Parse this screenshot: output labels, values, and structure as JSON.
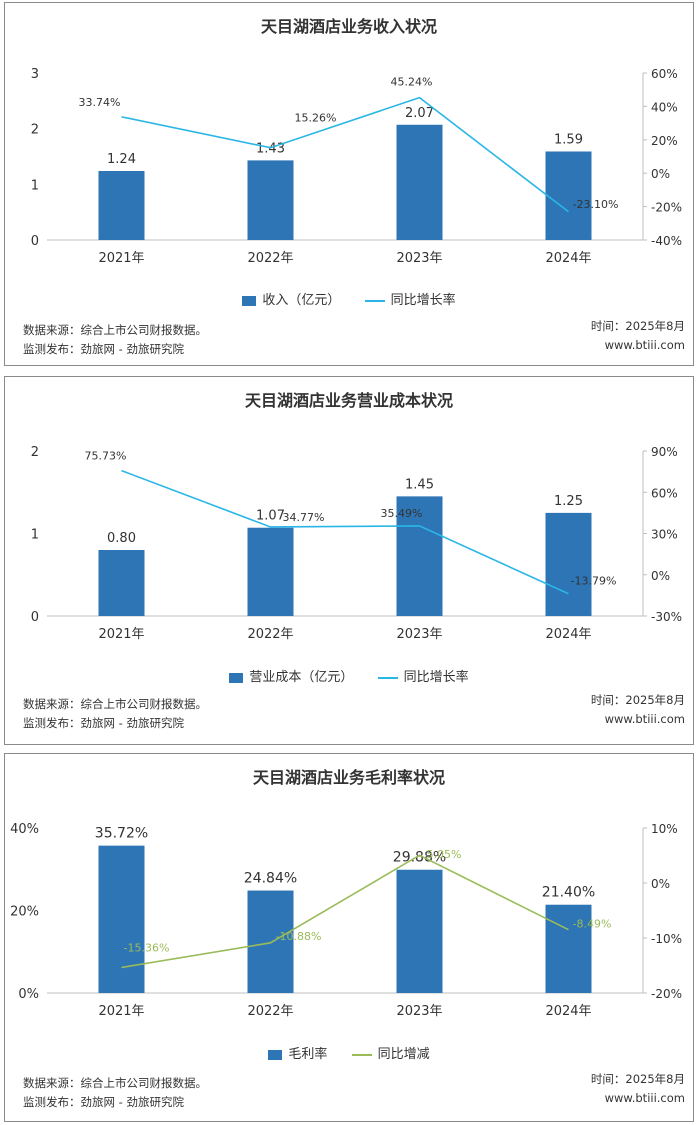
{
  "panels": [
    {
      "title": "天目湖酒店业务收入状况",
      "bar_legend": "收入（亿元）",
      "line_legend": "同比增长率",
      "source": "数据来源：综合上市公司财报数据。",
      "publisher": "监测发布：劲旅网 - 劲旅研究院",
      "time": "时间：2025年8月",
      "site": "www.btiii.com"
    },
    {
      "title": "天目湖酒店业务营业成本状况",
      "bar_legend": "营业成本（亿元）",
      "line_legend": "同比增长率",
      "source": "数据来源：综合上市公司财报数据。",
      "publisher": "监测发布：劲旅网 - 劲旅研究院",
      "time": "时间：2025年8月",
      "site": "www.btiii.com"
    },
    {
      "title": "天目湖酒店业务毛利率状况",
      "bar_legend": "毛利率",
      "line_legend": "同比增减",
      "source": "数据来源：综合上市公司财报数据。",
      "publisher": "监测发布：劲旅网 - 劲旅研究院",
      "time": "时间：2025年8月",
      "site": "www.btiii.com"
    }
  ],
  "chart_data": [
    {
      "type": "bar",
      "title": "天目湖酒店业务收入状况",
      "categories": [
        "2021年",
        "2022年",
        "2023年",
        "2024年"
      ],
      "series": [
        {
          "name": "收入（亿元）",
          "type": "bar",
          "axis": "left",
          "values": [
            1.24,
            1.43,
            2.07,
            1.59
          ],
          "labels": [
            "1.24",
            "1.43",
            "2.07",
            "1.59"
          ],
          "color": "#2E75B6"
        },
        {
          "name": "同比增长率",
          "type": "line",
          "axis": "right",
          "values": [
            33.74,
            15.26,
            45.24,
            -23.1
          ],
          "labels": [
            "33.74%",
            "15.26%",
            "45.24%",
            "-23.10%"
          ],
          "color": "#29B6E6"
        }
      ],
      "yleft": {
        "min": 0,
        "max": 3,
        "ticks": [
          "0",
          "1",
          "2",
          "3"
        ],
        "tick_values": [
          0,
          1,
          2,
          3
        ]
      },
      "yright": {
        "min": -40,
        "max": 60,
        "ticks": [
          "-40%",
          "-20%",
          "0%",
          "20%",
          "40%",
          "60%"
        ],
        "tick_values": [
          -40,
          -20,
          0,
          20,
          40,
          60
        ]
      },
      "legend": "bottom"
    },
    {
      "type": "bar",
      "title": "天目湖酒店业务营业成本状况",
      "categories": [
        "2021年",
        "2022年",
        "2023年",
        "2024年"
      ],
      "series": [
        {
          "name": "营业成本（亿元）",
          "type": "bar",
          "axis": "left",
          "values": [
            0.8,
            1.07,
            1.45,
            1.25
          ],
          "labels": [
            "0.80",
            "1.07",
            "1.45",
            "1.25"
          ],
          "color": "#2E75B6"
        },
        {
          "name": "同比增长率",
          "type": "line",
          "axis": "right",
          "values": [
            75.73,
            34.77,
            35.49,
            -13.79
          ],
          "labels": [
            "75.73%",
            "34.77%",
            "35.49%",
            "-13.79%"
          ],
          "color": "#29B6E6"
        }
      ],
      "yleft": {
        "min": 0,
        "max": 2,
        "ticks": [
          "0",
          "1",
          "2"
        ],
        "tick_values": [
          0,
          1,
          2
        ]
      },
      "yright": {
        "min": -30,
        "max": 90,
        "ticks": [
          "-30%",
          "0%",
          "30%",
          "60%",
          "90%"
        ],
        "tick_values": [
          -30,
          0,
          30,
          60,
          90
        ]
      },
      "legend": "bottom"
    },
    {
      "type": "bar",
      "title": "天目湖酒店业务毛利率状况",
      "categories": [
        "2021年",
        "2022年",
        "2023年",
        "2024年"
      ],
      "series": [
        {
          "name": "毛利率",
          "type": "bar",
          "axis": "left",
          "values": [
            35.72,
            24.84,
            29.88,
            21.4
          ],
          "labels": [
            "35.72%",
            "24.84%",
            "29.88%",
            "21.40%"
          ],
          "color": "#2E75B6"
        },
        {
          "name": "同比增减",
          "type": "line",
          "axis": "right",
          "values": [
            -15.36,
            -10.88,
            5.05,
            -8.49
          ],
          "labels": [
            "-15.36%",
            "-10.88%",
            "5.05%",
            "-8.49%"
          ],
          "color": "#9BBB59"
        }
      ],
      "yleft": {
        "min": 0,
        "max": 40,
        "ticks": [
          "0%",
          "20%",
          "40%"
        ],
        "tick_values": [
          0,
          20,
          40
        ]
      },
      "yright": {
        "min": -20,
        "max": 10,
        "ticks": [
          "-20%",
          "-10%",
          "0%",
          "10%"
        ],
        "tick_values": [
          -20,
          -10,
          0,
          10
        ]
      },
      "legend": "bottom"
    }
  ]
}
